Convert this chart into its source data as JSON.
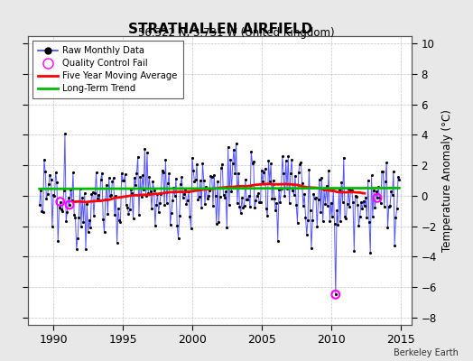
{
  "title": "STRATHALLEN AIRFIELD",
  "subtitle": "56.322 N, 3.731 W (United Kingdom)",
  "ylabel": "Temperature Anomaly (°C)",
  "watermark": "Berkeley Earth",
  "xlim": [
    1988.2,
    2015.8
  ],
  "ylim": [
    -8.5,
    10.5
  ],
  "yticks": [
    -8,
    -6,
    -4,
    -2,
    0,
    2,
    4,
    6,
    8,
    10
  ],
  "xticks": [
    1990,
    1995,
    2000,
    2005,
    2010,
    2015
  ],
  "bg_color": "#e8e8e8",
  "plot_bg_color": "#ffffff",
  "line_color": "#4444ff",
  "marker_color": "#000000",
  "ma_color": "#ff0000",
  "trend_color": "#00bb00",
  "qc_color": "#ff00ff",
  "seed": 12345,
  "noise_std": 1.35
}
